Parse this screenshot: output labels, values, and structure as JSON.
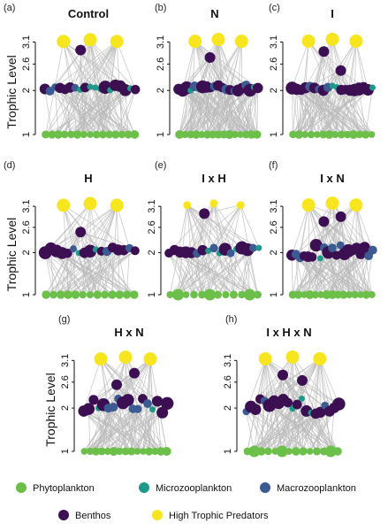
{
  "colors": {
    "phytoplankton": "#6cc04a",
    "microzooplankton": "#1f9a8a",
    "macrozooplankton": "#3b5b92",
    "benthos": "#3b0f52",
    "predators": "#f6e51f",
    "edges": "#b9b9b9"
  },
  "axis": {
    "label": "Trophic Level",
    "ticks": [
      "1",
      "2",
      "2.6",
      "3.1"
    ]
  },
  "panels": [
    {
      "letter": "(a)",
      "title": "Control"
    },
    {
      "letter": "(b)",
      "title": "N"
    },
    {
      "letter": "(c)",
      "title": "I"
    },
    {
      "letter": "(d)",
      "title": "H"
    },
    {
      "letter": "(e)",
      "title": "I x H"
    },
    {
      "letter": "(f)",
      "title": "I x N"
    },
    {
      "letter": "(g)",
      "title": "H x N"
    },
    {
      "letter": "(h)",
      "title": "I x H x N"
    }
  ],
  "legend": [
    {
      "key": "phytoplankton",
      "label": "Phytoplankton"
    },
    {
      "key": "microzooplankton",
      "label": "Microzooplankton"
    },
    {
      "key": "macrozooplankton",
      "label": "Macrozooplankton"
    },
    {
      "key": "benthos",
      "label": "Benthos"
    },
    {
      "key": "predators",
      "label": "High Trophic Predators"
    }
  ]
}
